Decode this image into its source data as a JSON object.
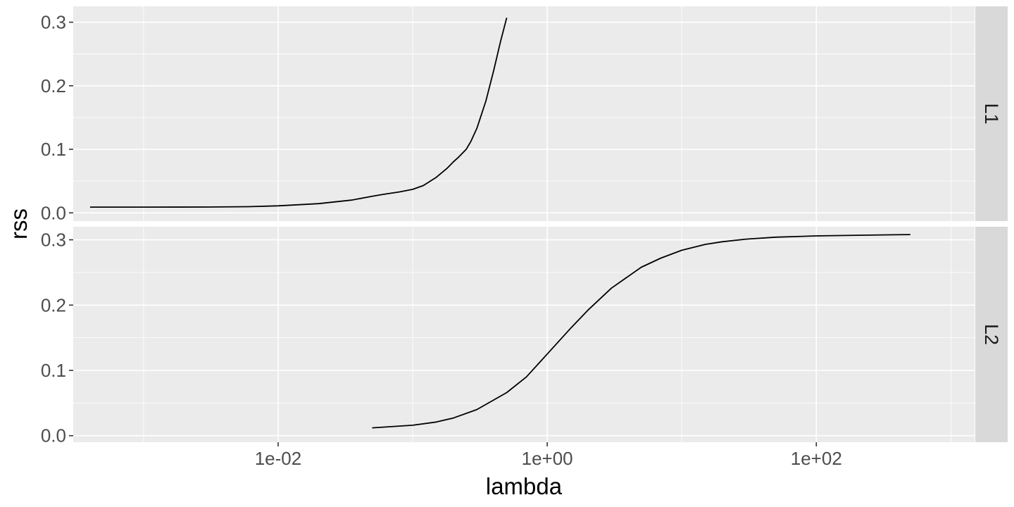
{
  "chart_data": {
    "type": "line",
    "xlabel": "lambda",
    "ylabel": "rss",
    "x_scale": "log10",
    "xlim": [
      0.0003,
      1500
    ],
    "x_ticks": [
      0.01,
      1,
      100
    ],
    "x_tick_labels": [
      "1e-02",
      "1e+00",
      "1e+02"
    ],
    "y_ticks": [
      0.0,
      0.1,
      0.2,
      0.3
    ],
    "y_tick_labels": [
      "0.0",
      "0.1",
      "0.2",
      "0.3"
    ],
    "grid": true,
    "facet_layout": "rows",
    "panels": [
      {
        "strip_label": "L1",
        "ylim": [
          -0.013,
          0.325
        ],
        "series": [
          {
            "x": [
              0.0004,
              0.001,
              0.003,
              0.006,
              0.01,
              0.02,
              0.035,
              0.05,
              0.06,
              0.08,
              0.1,
              0.12,
              0.15,
              0.18,
              0.2,
              0.22,
              0.25,
              0.27,
              0.3,
              0.35,
              0.4,
              0.45,
              0.5
            ],
            "y": [
              0.009,
              0.009,
              0.0092,
              0.0097,
              0.011,
              0.0145,
              0.02,
              0.026,
              0.029,
              0.033,
              0.037,
              0.043,
              0.056,
              0.07,
              0.08,
              0.088,
              0.1,
              0.112,
              0.133,
              0.176,
              0.224,
              0.27,
              0.307
            ]
          }
        ]
      },
      {
        "strip_label": "L2",
        "ylim": [
          -0.01,
          0.32
        ],
        "series": [
          {
            "x": [
              0.05,
              0.1,
              0.15,
              0.2,
              0.3,
              0.5,
              0.7,
              1,
              1.5,
              2,
              3,
              5,
              7,
              10,
              15,
              20,
              30,
              50,
              100,
              200,
              500
            ],
            "y": [
              0.012,
              0.016,
              0.021,
              0.027,
              0.04,
              0.066,
              0.09,
              0.125,
              0.165,
              0.192,
              0.226,
              0.258,
              0.272,
              0.284,
              0.293,
              0.297,
              0.301,
              0.304,
              0.306,
              0.307,
              0.308
            ]
          }
        ]
      }
    ]
  }
}
